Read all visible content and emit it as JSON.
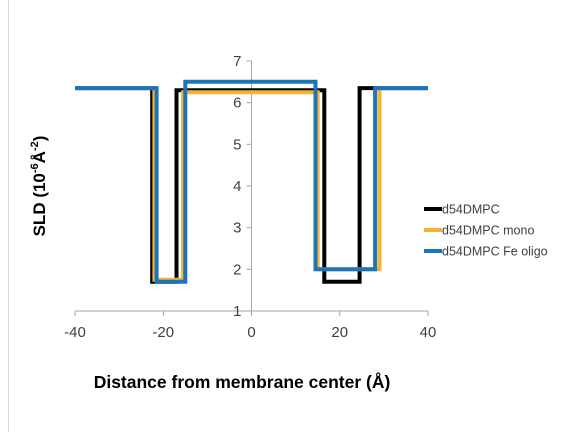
{
  "chart_data": {
    "type": "line",
    "title": "",
    "xlabel": "Distance from membrane center (Å)",
    "ylabel_parts": [
      "SLD (10",
      "-6",
      "Å",
      "-2",
      ")"
    ],
    "xlim": [
      -40,
      40
    ],
    "ylim": [
      1,
      7
    ],
    "xticks": [
      -40,
      -20,
      0,
      20,
      40
    ],
    "yticks": [
      1,
      2,
      3,
      4,
      5,
      6,
      7
    ],
    "grid": false,
    "legend_position": "right",
    "series": [
      {
        "name": "d54DMPC",
        "color": "#000000",
        "x": [
          -40,
          -22.5,
          -22.5,
          -17,
          -17,
          16.5,
          16.5,
          24.5,
          24.5,
          40
        ],
        "y": [
          6.35,
          6.35,
          1.7,
          1.7,
          6.3,
          6.3,
          1.7,
          1.7,
          6.35,
          6.35
        ]
      },
      {
        "name": "d54DMPC mono",
        "color": "#f5b335",
        "x": [
          -40,
          -22,
          -22,
          -15.5,
          -15.5,
          15,
          15,
          29,
          29,
          40
        ],
        "y": [
          6.35,
          6.35,
          1.75,
          1.75,
          6.25,
          6.25,
          2.0,
          2.0,
          6.35,
          6.35
        ]
      },
      {
        "name": "d54DMPC Fe oligo",
        "color": "#1b75bc",
        "x": [
          -40,
          -21.5,
          -21.5,
          -15,
          -15,
          14.5,
          14.5,
          28,
          28,
          40
        ],
        "y": [
          6.35,
          6.35,
          1.7,
          1.7,
          6.5,
          6.5,
          2.0,
          2.0,
          6.35,
          6.35
        ]
      }
    ]
  }
}
